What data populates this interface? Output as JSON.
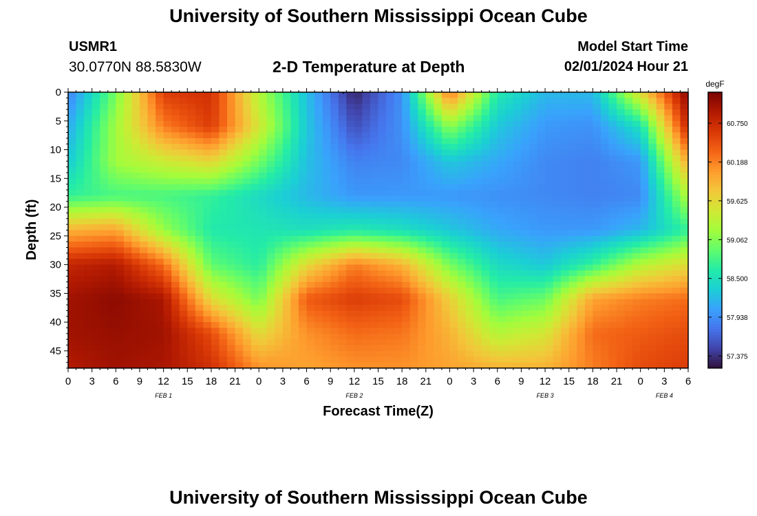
{
  "header": {
    "title": "University of Southern Mississippi Ocean Cube",
    "station_id": "USMR1",
    "coordinates": "30.0770N  88.5830W",
    "subtitle": "2-D Temperature at Depth",
    "model_start_label": "Model Start Time",
    "model_start_value": "02/01/2024 Hour 21"
  },
  "footer": {
    "title": "University of Southern Mississippi Ocean Cube"
  },
  "chart_data": {
    "type": "heatmap",
    "title": "2-D Temperature at Depth",
    "xlabel": "Forecast Time(Z)",
    "ylabel": "Depth (ft)",
    "x_hours_range": [
      0,
      78
    ],
    "y_range_ft": [
      0,
      48
    ],
    "x_tick_labels": [
      "0",
      "3",
      "6",
      "9",
      "12",
      "15",
      "18",
      "21",
      "0",
      "3",
      "6",
      "9",
      "12",
      "15",
      "18",
      "21",
      "0",
      "3",
      "6",
      "9",
      "12",
      "15",
      "18",
      "21",
      "0",
      "3",
      "6"
    ],
    "y_tick_labels": [
      "0",
      "5",
      "10",
      "15",
      "20",
      "25",
      "30",
      "35",
      "40",
      "45"
    ],
    "day_labels": [
      {
        "label": "FEB 1",
        "hour": 12
      },
      {
        "label": "FEB 2",
        "hour": 36
      },
      {
        "label": "FEB 3",
        "hour": 60
      },
      {
        "label": "FEB 4",
        "hour": 75
      }
    ],
    "colorbar": {
      "unit": "degF",
      "range": [
        57.2,
        61.2
      ],
      "tick_labels": [
        "60.750",
        "60.188",
        "59.625",
        "59.062",
        "58.500",
        "57.938",
        "57.375"
      ],
      "tick_values": [
        60.75,
        60.188,
        59.625,
        59.062,
        58.5,
        57.938,
        57.375
      ],
      "colors": [
        "#30123b",
        "#4145ab",
        "#4675ed",
        "#39a2fc",
        "#1bcfd4",
        "#24eca6",
        "#61fc6c",
        "#a4fc3b",
        "#d1e834",
        "#f3c63a",
        "#fe9b2d",
        "#f36315",
        "#d93806",
        "#b11901",
        "#7a0402"
      ]
    },
    "grid_times_h": [
      0,
      6,
      12,
      18,
      24,
      30,
      36,
      42,
      48,
      54,
      60,
      66,
      72,
      78
    ],
    "grid_depths_ft": [
      0,
      6,
      12,
      18,
      24,
      30,
      36,
      42,
      48
    ],
    "temperature_degF": [
      [
        57.85,
        59.0,
        60.6,
        60.7,
        59.3,
        58.25,
        57.3,
        57.95,
        60.25,
        58.6,
        58.2,
        58.2,
        59.6,
        61.15
      ],
      [
        58.1,
        59.2,
        60.2,
        60.6,
        59.5,
        58.3,
        57.55,
        57.95,
        59.1,
        58.3,
        58.0,
        57.95,
        58.5,
        60.8
      ],
      [
        58.3,
        59.2,
        59.45,
        59.65,
        59.0,
        58.25,
        57.85,
        57.9,
        58.3,
        58.1,
        57.9,
        57.85,
        58.0,
        60.0
      ],
      [
        58.7,
        58.8,
        58.8,
        58.7,
        58.45,
        58.2,
        58.0,
        58.0,
        58.0,
        57.95,
        57.9,
        57.85,
        57.9,
        59.3
      ],
      [
        59.9,
        60.0,
        59.15,
        58.6,
        58.55,
        58.5,
        58.6,
        58.5,
        58.3,
        58.1,
        58.0,
        58.0,
        58.2,
        58.7
      ],
      [
        60.8,
        60.9,
        60.3,
        58.9,
        58.65,
        59.6,
        60.2,
        59.9,
        59.0,
        58.45,
        58.3,
        58.7,
        59.3,
        59.6
      ],
      [
        61.0,
        61.1,
        60.95,
        59.6,
        59.0,
        60.4,
        60.6,
        60.5,
        59.7,
        58.8,
        58.95,
        60.0,
        60.2,
        60.3
      ],
      [
        61.0,
        61.05,
        61.0,
        60.5,
        59.6,
        60.1,
        60.3,
        60.25,
        59.9,
        59.3,
        59.5,
        60.3,
        60.4,
        60.5
      ],
      [
        60.9,
        61.0,
        60.95,
        60.7,
        60.1,
        60.0,
        60.1,
        60.1,
        60.0,
        59.9,
        59.9,
        60.2,
        60.5,
        60.6
      ]
    ],
    "marker_labels": {
      "top_tick": "▪"
    }
  }
}
